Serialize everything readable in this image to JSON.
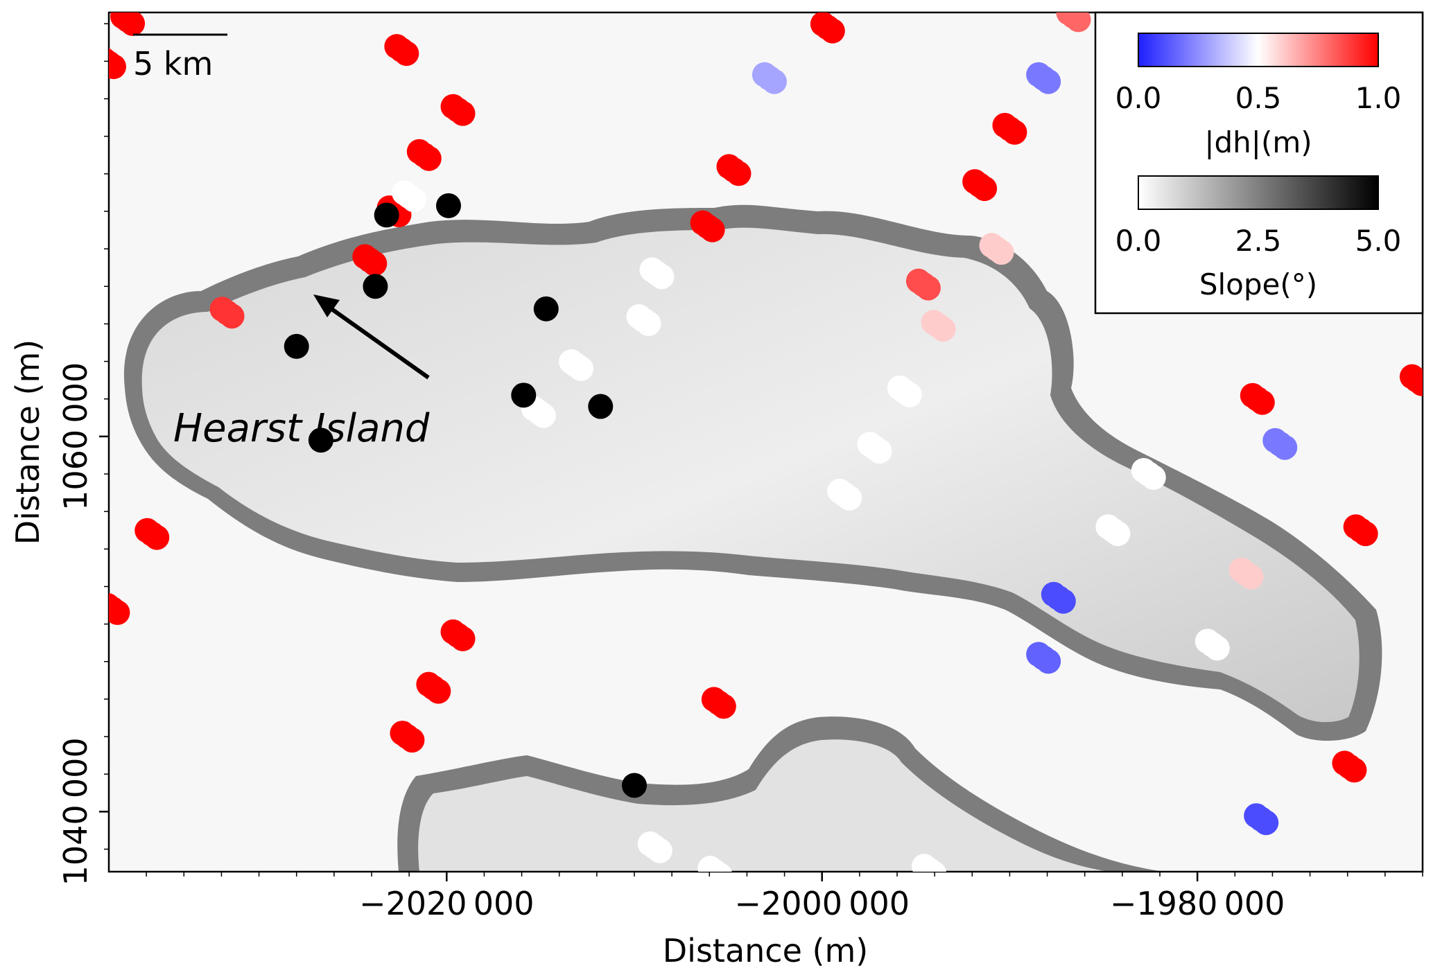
{
  "chart_data": {
    "type": "scatter",
    "title": "",
    "xlabel": "Distance (m)",
    "ylabel": "Distance (m)",
    "xlim": [
      -2038000,
      -1968000
    ],
    "ylim": [
      1036800,
      1082600
    ],
    "x_ticks": [
      -2020000,
      -2000000,
      -1980000
    ],
    "x_tick_labels": [
      "−2020 000",
      "−2000 000",
      "−1980 000"
    ],
    "y_ticks": [
      1040000,
      1060000
    ],
    "y_tick_labels": [
      "1040 000",
      "1060 000"
    ],
    "grid": false,
    "background_layer": "slope map (grayscale) of Hearst Island region",
    "scalebar_label": "5 km",
    "annotation": "Hearst Island",
    "colorbars": [
      {
        "label": "|dh|(m)",
        "ticks": [
          "0.0",
          "0.5",
          "1.0"
        ],
        "cmap": [
          "#1f1fff",
          "#ffffff",
          "#ff0000"
        ]
      },
      {
        "label": "Slope(°)",
        "ticks": [
          "0.0",
          "2.5",
          "5.0"
        ],
        "cmap": [
          "#ffffff",
          "#000000"
        ]
      }
    ],
    "series": [
      {
        "values": [
          [
            -2037000,
            1082200,
            1.0
          ],
          [
            -2038000,
            1079900,
            1.0
          ],
          [
            -2022400,
            1080600,
            1.0
          ],
          [
            -2019400,
            1077400,
            1.0
          ],
          [
            -2021200,
            1075000,
            1.0
          ],
          [
            -2022800,
            1072000,
            1.0
          ],
          [
            -2024100,
            1069400,
            1.0
          ],
          [
            -2004700,
            1074200,
            1.0
          ],
          [
            -2006100,
            1071200,
            1.0
          ],
          [
            -1999700,
            1081800,
            1.0
          ],
          [
            -2002800,
            1079100,
            0.3
          ],
          [
            -1986600,
            1082400,
            0.8
          ],
          [
            -1988200,
            1079100,
            0.2
          ],
          [
            -1990000,
            1076400,
            1.0
          ],
          [
            -1991600,
            1073400,
            1.0
          ],
          [
            -1976800,
            1062000,
            1.0
          ],
          [
            -1975600,
            1059600,
            0.2
          ],
          [
            -1968300,
            1063000,
            1.0
          ],
          [
            -1971300,
            1055000,
            1.0
          ],
          [
            -2035700,
            1054800,
            1.0
          ],
          [
            -2037800,
            1050800,
            1.0
          ],
          [
            -2019400,
            1049400,
            1.0
          ],
          [
            -2020700,
            1046600,
            1.0
          ],
          [
            -2022100,
            1044000,
            1.0
          ],
          [
            -2005500,
            1045800,
            1.0
          ],
          [
            -1987400,
            1051400,
            0.1
          ],
          [
            -1988200,
            1048200,
            0.15
          ],
          [
            -1971900,
            1042400,
            1.0
          ],
          [
            -1976600,
            1039600,
            0.1
          ],
          [
            -2031700,
            1066600,
            0.9
          ],
          [
            -2022000,
            1072800,
            0.5
          ],
          [
            -1994600,
            1068100,
            0.85
          ],
          [
            -2013100,
            1063800,
            0.5
          ],
          [
            -2015100,
            1061300,
            0.5
          ],
          [
            -2008800,
            1068700,
            0.5
          ],
          [
            -2009500,
            1066200,
            0.5
          ],
          [
            -1993800,
            1065900,
            0.6
          ],
          [
            -1995600,
            1062400,
            0.5
          ],
          [
            -1997200,
            1059400,
            0.5
          ],
          [
            -1998800,
            1056900,
            0.5
          ],
          [
            -1990700,
            1070000,
            0.6
          ],
          [
            -1982600,
            1058000,
            0.5
          ],
          [
            -1984500,
            1055000,
            0.5
          ],
          [
            -1977400,
            1052700,
            0.6
          ],
          [
            -1979200,
            1048900,
            0.5
          ],
          [
            -2008900,
            1038100,
            0.5
          ],
          [
            -2005700,
            1036800,
            0.5
          ],
          [
            -1994300,
            1036900,
            0.5
          ],
          [
            -2010000,
            1041400,
            1.0
          ],
          [
            -2028000,
            1064800,
            1.0
          ],
          [
            -2023800,
            1068000,
            1.0
          ],
          [
            -2023200,
            1071800,
            1.0
          ],
          [
            -2019900,
            1072300,
            1.0
          ],
          [
            -2014700,
            1066800,
            1.0
          ],
          [
            -2015900,
            1062200,
            1.0
          ],
          [
            -2011800,
            1061600,
            1.0
          ],
          [
            -2026700,
            1059800,
            1.0
          ]
        ],
        "note_fields": [
          "x",
          "y",
          "value"
        ]
      }
    ]
  }
}
